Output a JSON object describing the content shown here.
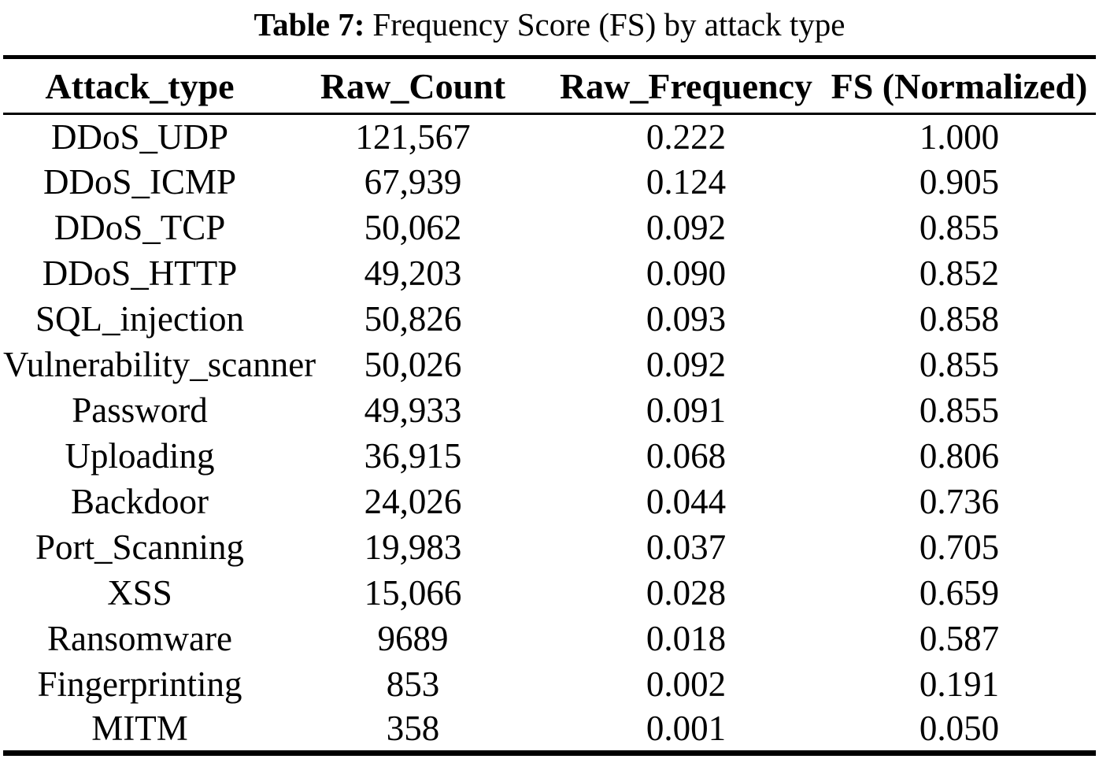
{
  "caption": {
    "label": "Table 7:",
    "text": "Frequency Score (FS) by attack type"
  },
  "table": {
    "columns": [
      "Attack_type",
      "Raw_Count",
      "Raw_Frequency",
      "FS (Normalized)"
    ],
    "rows": [
      [
        "DDoS_UDP",
        "121,567",
        "0.222",
        "1.000"
      ],
      [
        "DDoS_ICMP",
        "67,939",
        "0.124",
        "0.905"
      ],
      [
        "DDoS_TCP",
        "50,062",
        "0.092",
        "0.855"
      ],
      [
        "DDoS_HTTP",
        "49,203",
        "0.090",
        "0.852"
      ],
      [
        "SQL_injection",
        "50,826",
        "0.093",
        "0.858"
      ],
      [
        "Vulnerability_scanner",
        "50,026",
        "0.092",
        "0.855"
      ],
      [
        "Password",
        "49,933",
        "0.091",
        "0.855"
      ],
      [
        "Uploading",
        "36,915",
        "0.068",
        "0.806"
      ],
      [
        "Backdoor",
        "24,026",
        "0.044",
        "0.736"
      ],
      [
        "Port_Scanning",
        "19,983",
        "0.037",
        "0.705"
      ],
      [
        "XSS",
        "15,066",
        "0.028",
        "0.659"
      ],
      [
        "Ransomware",
        "9689",
        "0.018",
        "0.587"
      ],
      [
        "Fingerprinting",
        "853",
        "0.002",
        "0.191"
      ],
      [
        "MITM",
        "358",
        "0.001",
        "0.050"
      ]
    ]
  },
  "colors": {
    "text": "#000000",
    "background": "#ffffff",
    "rule": "#000000"
  }
}
